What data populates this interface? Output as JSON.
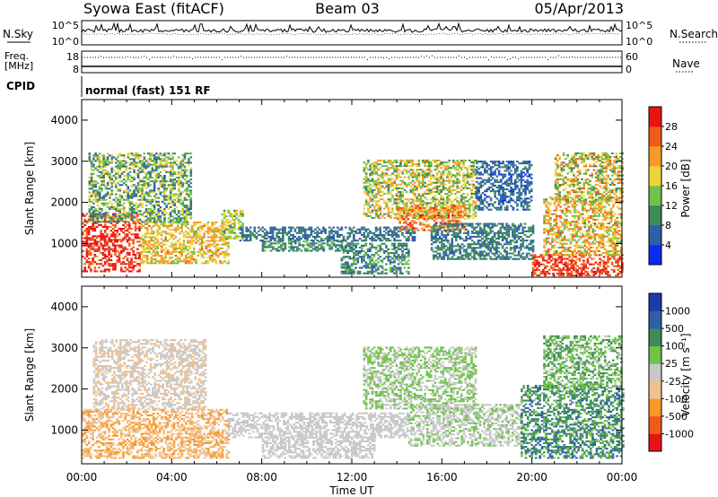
{
  "header": {
    "station": "Syowa East (fitACF)",
    "beam": "Beam 03",
    "date": "05/Apr/2013"
  },
  "top_panel": {
    "left_label": "N.Sky",
    "right_label": "N.Search",
    "left_ticks": [
      "10^5",
      "10^0"
    ],
    "right_ticks": [
      "10^5",
      "10^0"
    ]
  },
  "freq_panel": {
    "left_label_line1": "Freq.",
    "left_label_line2": "[MHz]",
    "right_label": "Nave",
    "left_ticks": [
      "18",
      "8"
    ],
    "right_ticks": [
      "60",
      "0"
    ]
  },
  "cpid": {
    "label": "CPID",
    "value": "normal (fast) 151 RF"
  },
  "colors": {
    "power": [
      "#0a2cf0",
      "#2f5fa8",
      "#3d8c5a",
      "#6fc24a",
      "#f0d23a",
      "#f79a2a",
      "#f25a1a",
      "#e81414"
    ],
    "velocity": [
      "#e81414",
      "#f25a1a",
      "#f79a2a",
      "#f0c090",
      "#c8c8c8",
      "#6fc24a",
      "#3d8c5a",
      "#2f5fa8",
      "#1a3ca8"
    ]
  },
  "chart_data": [
    {
      "type": "heatmap",
      "title": "",
      "xlabel": "",
      "ylabel": "Slant Range [km]",
      "x_ticks": [
        "00:00",
        "04:00",
        "08:00",
        "12:00",
        "16:00",
        "20:00",
        "00:00"
      ],
      "y_ticks": [
        "1000",
        "2000",
        "3000",
        "4000"
      ],
      "ylim": [
        180,
        4500
      ],
      "xlim_hours": [
        0,
        24
      ],
      "colorbar": {
        "label": "Power [dB]",
        "ticks": [
          "4",
          "8",
          "12",
          "16",
          "20",
          "24",
          "28"
        ],
        "range": [
          0,
          30
        ]
      },
      "regions": [
        {
          "t0": 0.0,
          "t1": 2.6,
          "r0": 300,
          "r1": 1700,
          "val": 27,
          "spread": 5
        },
        {
          "t0": 2.6,
          "t1": 6.5,
          "r0": 500,
          "r1": 1500,
          "val": 18,
          "spread": 5
        },
        {
          "t0": 0.3,
          "t1": 4.8,
          "r0": 1500,
          "r1": 3200,
          "val": 12,
          "spread": 7
        },
        {
          "t0": 6.2,
          "t1": 7.1,
          "r0": 1100,
          "r1": 1800,
          "val": 14,
          "spread": 5
        },
        {
          "t0": 7.0,
          "t1": 14.8,
          "r0": 1050,
          "r1": 1400,
          "val": 7,
          "spread": 3
        },
        {
          "t0": 8.0,
          "t1": 12.0,
          "r0": 800,
          "r1": 1050,
          "val": 9,
          "spread": 4
        },
        {
          "t0": 11.5,
          "t1": 14.5,
          "r0": 250,
          "r1": 1000,
          "val": 9,
          "spread": 5
        },
        {
          "t0": 12.5,
          "t1": 17.5,
          "r0": 1600,
          "r1": 3000,
          "val": 15,
          "spread": 7
        },
        {
          "t0": 14.0,
          "t1": 17.0,
          "r0": 1300,
          "r1": 1900,
          "val": 22,
          "spread": 5
        },
        {
          "t0": 15.5,
          "t1": 20.0,
          "r0": 600,
          "r1": 1500,
          "val": 8,
          "spread": 3
        },
        {
          "t0": 17.5,
          "t1": 20.0,
          "r0": 1800,
          "r1": 3000,
          "val": 6,
          "spread": 3
        },
        {
          "t0": 20.0,
          "t1": 24.0,
          "r0": 200,
          "r1": 700,
          "val": 26,
          "spread": 4
        },
        {
          "t0": 20.5,
          "t1": 24.0,
          "r0": 700,
          "r1": 2100,
          "val": 18,
          "spread": 7
        },
        {
          "t0": 21.0,
          "t1": 24.0,
          "r0": 2000,
          "r1": 3200,
          "val": 16,
          "spread": 8
        }
      ]
    },
    {
      "type": "heatmap",
      "title": "",
      "xlabel": "Time UT",
      "ylabel": "Slant Range [km]",
      "x_ticks": [
        "00:00",
        "04:00",
        "08:00",
        "12:00",
        "16:00",
        "20:00",
        "00:00"
      ],
      "y_ticks": [
        "1000",
        "2000",
        "3000",
        "4000"
      ],
      "ylim": [
        180,
        4500
      ],
      "xlim_hours": [
        0,
        24
      ],
      "colorbar": {
        "label": "Velocity [m s⁻¹]",
        "ticks": [
          "1000",
          "500",
          "100",
          "25",
          "-25",
          "-100",
          "-500",
          "-1000"
        ],
        "range": [
          -1000,
          1000
        ]
      },
      "regions": [
        {
          "t0": 0.0,
          "t1": 6.5,
          "r0": 300,
          "r1": 1500,
          "val": -300,
          "spread": 150
        },
        {
          "t0": 0.5,
          "t1": 5.5,
          "r0": 1500,
          "r1": 3200,
          "val": -80,
          "spread": 150
        },
        {
          "t0": 6.5,
          "t1": 14.5,
          "r0": 800,
          "r1": 1400,
          "val": 0,
          "spread": 15
        },
        {
          "t0": 8.0,
          "t1": 13.0,
          "r0": 300,
          "r1": 800,
          "val": 0,
          "spread": 15
        },
        {
          "t0": 12.5,
          "t1": 17.5,
          "r0": 1500,
          "r1": 3000,
          "val": 120,
          "spread": 120
        },
        {
          "t0": 14.5,
          "t1": 19.5,
          "r0": 600,
          "r1": 1600,
          "val": 80,
          "spread": 80
        },
        {
          "t0": 19.5,
          "t1": 24.0,
          "r0": 300,
          "r1": 2100,
          "val": 450,
          "spread": 250
        },
        {
          "t0": 20.5,
          "t1": 24.0,
          "r0": 2000,
          "r1": 3300,
          "val": 250,
          "spread": 200
        }
      ]
    }
  ]
}
